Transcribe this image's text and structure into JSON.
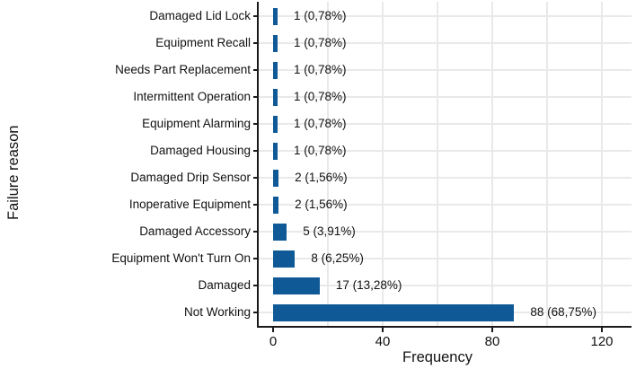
{
  "chart_data": {
    "type": "bar",
    "orientation": "horizontal",
    "title": "",
    "xlabel": "Frequency",
    "ylabel": "Failure reason",
    "categories": [
      "Damaged Lid Lock",
      "Equipment Recall",
      "Needs Part Replacement",
      "Intermittent Operation",
      "Equipment Alarming",
      "Damaged Housing",
      "Damaged Drip Sensor",
      "Inoperative Equipment",
      "Damaged Accessory",
      "Equipment Won't Turn On",
      "Damaged",
      "Not Working"
    ],
    "values": [
      1,
      1,
      1,
      1,
      1,
      1,
      2,
      2,
      5,
      8,
      17,
      88
    ],
    "bar_labels": [
      "1 (0,78%)",
      "1 (0,78%)",
      "1 (0,78%)",
      "1 (0,78%)",
      "1 (0,78%)",
      "1 (0,78%)",
      "2 (1,56%)",
      "2 (1,56%)",
      "5 (3,91%)",
      "8 (6,25%)",
      "17 (13,28%)",
      "88 (68,75%)"
    ],
    "x_ticks": [
      0,
      40,
      80,
      120
    ],
    "x_tick_labels": [
      "0",
      "40",
      "80",
      "120"
    ],
    "x_gridlines": [
      20,
      40,
      60,
      80,
      100,
      120
    ],
    "xlim": [
      0,
      130
    ],
    "grid": "both",
    "legend": "none",
    "bar_color": "#0f5a96",
    "grid_color": "#e9e9e9",
    "axis_color": "#1a1a1a",
    "text_color": "#111111"
  }
}
